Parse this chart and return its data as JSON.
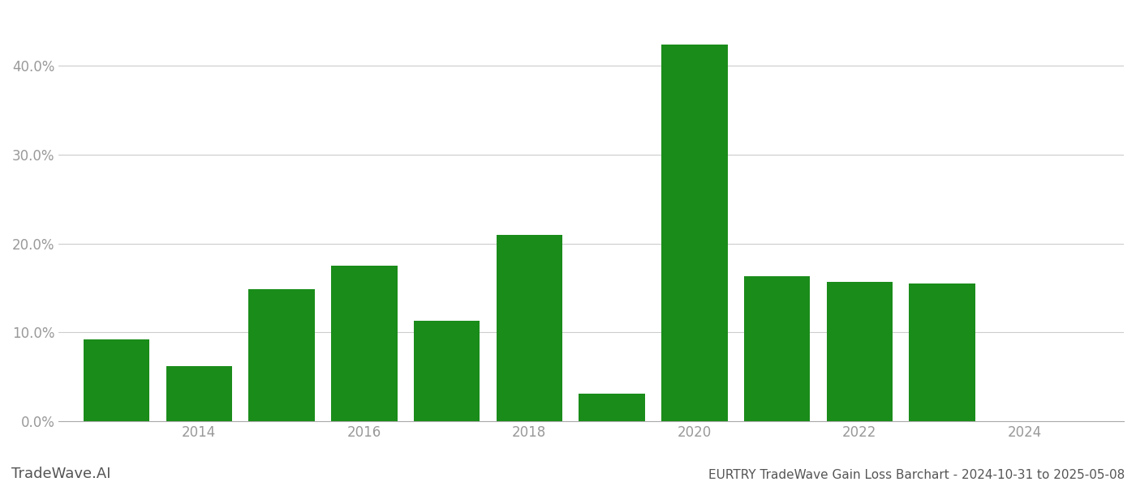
{
  "years": [
    2013,
    2014,
    2015,
    2016,
    2017,
    2018,
    2019,
    2020,
    2021,
    2022,
    2023
  ],
  "values": [
    0.092,
    0.062,
    0.149,
    0.175,
    0.113,
    0.21,
    0.031,
    0.424,
    0.163,
    0.157,
    0.155
  ],
  "bar_color": "#1a8c1a",
  "background_color": "#ffffff",
  "title": "EURTRY TradeWave Gain Loss Barchart - 2024-10-31 to 2025-05-08",
  "watermark": "TradeWave.AI",
  "ylim": [
    0,
    0.46
  ],
  "yticks": [
    0.0,
    0.1,
    0.2,
    0.3,
    0.4
  ],
  "xlim_left": 2012.3,
  "xlim_right": 2025.2,
  "xtick_positions": [
    2014,
    2016,
    2018,
    2020,
    2022,
    2024
  ],
  "xtick_labels": [
    "2014",
    "2016",
    "2018",
    "2020",
    "2022",
    "2024"
  ],
  "bar_width": 0.8,
  "grid_color": "#cccccc",
  "tick_color": "#999999",
  "spine_color": "#aaaaaa",
  "label_fontsize": 12,
  "watermark_fontsize": 13,
  "title_fontsize": 11
}
